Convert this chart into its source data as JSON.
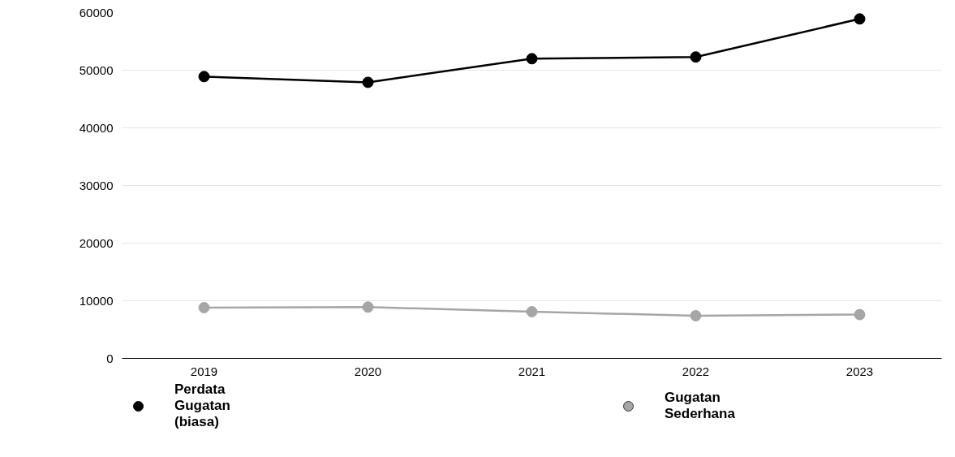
{
  "chart_data": {
    "type": "line",
    "categories": [
      "2019",
      "2020",
      "2021",
      "2022",
      "2023"
    ],
    "series": [
      {
        "name": "Perdata Gugatan (biasa)",
        "color": "#000000",
        "values": [
          48900,
          47900,
          52000,
          52300,
          58900
        ]
      },
      {
        "name": "Gugatan Sederhana",
        "color": "#a6a6a6",
        "values": [
          8800,
          8900,
          8100,
          7400,
          7600
        ]
      }
    ],
    "ylim": [
      0,
      60000
    ],
    "yticks": [
      0,
      10000,
      20000,
      30000,
      40000,
      50000,
      60000
    ],
    "grid": "y",
    "legend": "bottom",
    "marker": "circle",
    "line_style": "solid"
  }
}
